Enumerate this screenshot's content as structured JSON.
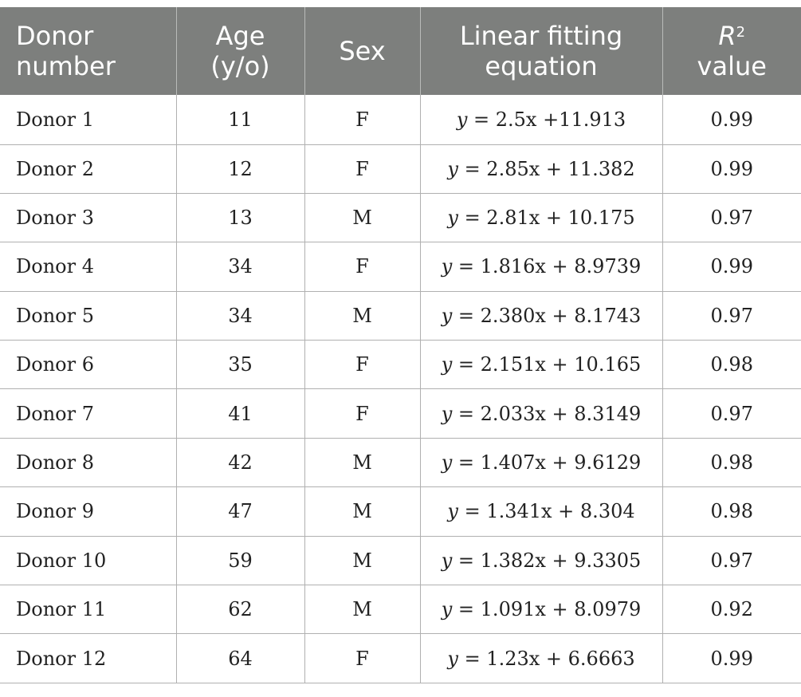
{
  "table": {
    "headers": [
      {
        "lines": [
          "Donor",
          "number"
        ]
      },
      {
        "lines": [
          "Age",
          "(y/o)"
        ]
      },
      {
        "lines": [
          "Sex"
        ]
      },
      {
        "lines": [
          "Linear fitting",
          "equation"
        ]
      },
      {
        "r_symbol": "R",
        "r_exponent": "2",
        "line2": "value"
      }
    ],
    "rows": [
      {
        "donor": "Donor 1",
        "age": "11",
        "sex": "F",
        "eq_y": "y",
        "eq_rest": " = 2.5x +11.913",
        "r2": "0.99"
      },
      {
        "donor": "Donor 2",
        "age": "12",
        "sex": "F",
        "eq_y": "y",
        "eq_rest": " = 2.85x + 11.382",
        "r2": "0.99"
      },
      {
        "donor": "Donor 3",
        "age": "13",
        "sex": "M",
        "eq_y": "y",
        "eq_rest": " = 2.81x + 10.175",
        "r2": "0.97"
      },
      {
        "donor": "Donor 4",
        "age": "34",
        "sex": "F",
        "eq_y": "y",
        "eq_rest": " = 1.816x + 8.9739",
        "r2": "0.99"
      },
      {
        "donor": "Donor 5",
        "age": "34",
        "sex": "M",
        "eq_y": "y",
        "eq_rest": " = 2.380x + 8.1743",
        "r2": "0.97"
      },
      {
        "donor": "Donor 6",
        "age": "35",
        "sex": "F",
        "eq_y": "y",
        "eq_rest": " = 2.151x + 10.165",
        "r2": "0.98"
      },
      {
        "donor": "Donor 7",
        "age": "41",
        "sex": "F",
        "eq_y": "y",
        "eq_rest": " = 2.033x + 8.3149",
        "r2": "0.97"
      },
      {
        "donor": "Donor 8",
        "age": "42",
        "sex": "M",
        "eq_y": "y",
        "eq_rest": " = 1.407x + 9.6129",
        "r2": "0.98"
      },
      {
        "donor": "Donor 9",
        "age": "47",
        "sex": "M",
        "eq_y": "y",
        "eq_rest": " = 1.341x + 8.304",
        "r2": "0.98"
      },
      {
        "donor": "Donor 10",
        "age": "59",
        "sex": "M",
        "eq_y": "y",
        "eq_rest": " = 1.382x + 9.3305",
        "r2": "0.97"
      },
      {
        "donor": "Donor 11",
        "age": "62",
        "sex": "M",
        "eq_y": "y",
        "eq_rest": " = 1.091x + 8.0979",
        "r2": "0.92"
      },
      {
        "donor": "Donor 12",
        "age": "64",
        "sex": "F",
        "eq_y": "y",
        "eq_rest": " = 1.23x + 6.6663",
        "r2": "0.99"
      }
    ]
  },
  "colors": {
    "header_bg": "#7d7f7d",
    "header_text": "#ffffff",
    "grid": "#b0b0b0"
  }
}
